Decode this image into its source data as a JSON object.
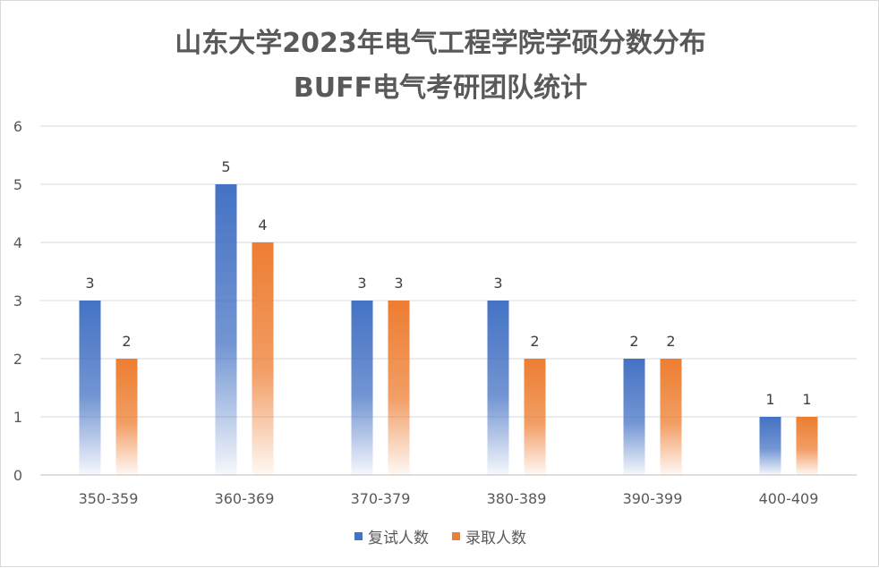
{
  "chart_data": {
    "type": "bar",
    "title": "山东大学2023年电气工程学院学硕分数分布",
    "subtitle": "BUFF电气考研团队统计",
    "categories": [
      "350-359",
      "360-369",
      "370-379",
      "380-389",
      "390-399",
      "400-409"
    ],
    "series": [
      {
        "name": "复试人数",
        "values": [
          3,
          5,
          3,
          3,
          2,
          1
        ],
        "color": "#4472c4"
      },
      {
        "name": "录取人数",
        "values": [
          2,
          4,
          3,
          2,
          2,
          1
        ],
        "color": "#ed7d31"
      }
    ],
    "ylim": [
      0,
      6
    ],
    "yticks": [
      "0",
      "1",
      "2",
      "3",
      "4",
      "5",
      "6"
    ],
    "grid": true,
    "legend_position": "bottom",
    "data_labels": true
  }
}
